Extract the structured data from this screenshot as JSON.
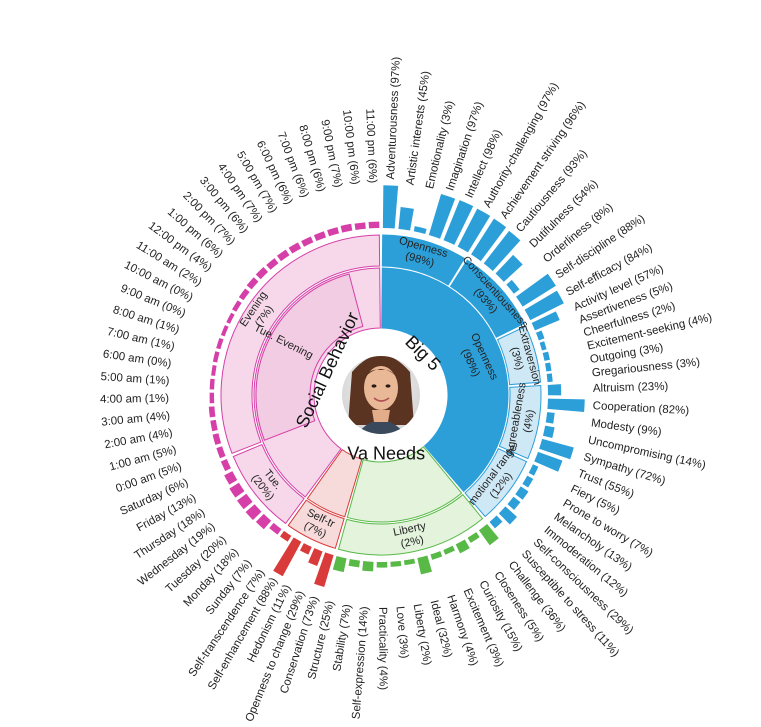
{
  "chart_data": {
    "type": "sunburst",
    "center_avatar": "profile-photo",
    "colors": {
      "big5": "#2c9fd9",
      "big5_light": "#cfe8f6",
      "needs": "#58b947",
      "needs_light": "#e3f3dc",
      "values": "#d93a3a",
      "values_light": "#f7dada",
      "social": "#d63fa8",
      "social_light": "#f6d8ea"
    },
    "sectors": [
      {
        "name": "Big 5",
        "percent_label": "Openness (98%)",
        "start": 0,
        "end": 140,
        "color_key": "big5",
        "groups": [
          {
            "name": "Openness",
            "pct_label": "(98%)",
            "start": 0,
            "end": 32,
            "shade": "strong",
            "traits": [
              {
                "label": "Adventurousness (97%)",
                "value": 0.97
              },
              {
                "label": "Artistic interests (45%)",
                "value": 0.45
              },
              {
                "label": "Emotionality (3%)",
                "value": 0.03
              },
              {
                "label": "Imagination (97%)",
                "value": 0.97
              },
              {
                "label": "Intellect (98%)",
                "value": 0.98
              },
              {
                "label": "Authority-challenging (97%)",
                "value": 0.97
              }
            ]
          },
          {
            "name": "Conscientiousness",
            "short": "Conscientiousness",
            "pct_label": "(93%)",
            "start": 32,
            "end": 64,
            "shade": "strong",
            "traits": [
              {
                "label": "Achievement striving (96%)",
                "value": 0.96
              },
              {
                "label": "Cautiousness (93%)",
                "value": 0.93
              },
              {
                "label": "Dutifulness (54%)",
                "value": 0.54
              },
              {
                "label": "Orderliness (8%)",
                "value": 0.08
              },
              {
                "label": "Self-discipline (88%)",
                "value": 0.88
              },
              {
                "label": "Self-efficacy (84%)",
                "value": 0.84
              }
            ]
          },
          {
            "name": "Extraversion",
            "pct_label": "(3%)",
            "start": 64,
            "end": 86,
            "shade": "light",
            "traits": [
              {
                "label": "Activity level (57%)",
                "value": 0.57
              },
              {
                "label": "Assertiveness (5%)",
                "value": 0.05
              },
              {
                "label": "Cheerfulness (2%)",
                "value": 0.02
              },
              {
                "label": "Excitement-seeking (4%)",
                "value": 0.04
              },
              {
                "label": "Outgoing (3%)",
                "value": 0.03
              },
              {
                "label": "Gregariousness (3%)",
                "value": 0.03
              }
            ]
          },
          {
            "name": "Agreeableness",
            "pct_label": "(4%)",
            "start": 86,
            "end": 114,
            "shade": "light",
            "traits": [
              {
                "label": "Altruism (23%)",
                "value": 0.23
              },
              {
                "label": "Cooperation (82%)",
                "value": 0.82
              },
              {
                "label": "Modesty (9%)",
                "value": 0.09
              },
              {
                "label": "Uncompromising (14%)",
                "value": 0.14
              },
              {
                "label": "Sympathy (72%)",
                "value": 0.72
              },
              {
                "label": "Trust (55%)",
                "value": 0.55
              }
            ]
          },
          {
            "name": "Emotional range",
            "pct_label": "(12%)",
            "start": 114,
            "end": 140,
            "shade": "light",
            "traits": [
              {
                "label": "Fiery (5%)",
                "value": 0.05
              },
              {
                "label": "Prone to worry (7%)",
                "value": 0.07
              },
              {
                "label": "Melancholy (13%)",
                "value": 0.13
              },
              {
                "label": "Immoderation (12%)",
                "value": 0.12
              },
              {
                "label": "Self-consciousness (29%)",
                "value": 0.29
              },
              {
                "label": "Susceptible to stress (11%)",
                "value": 0.11
              }
            ]
          }
        ]
      },
      {
        "name": "Needs",
        "start": 140,
        "end": 196,
        "color_key": "needs",
        "groups": [
          {
            "name": "Liberty",
            "pct_label": "(2%)",
            "start": 140,
            "end": 196,
            "shade": "light",
            "traits": [
              {
                "label": "Challenge (36%)",
                "value": 0.36
              },
              {
                "label": "Closeness (5%)",
                "value": 0.05
              },
              {
                "label": "Curiosity (15%)",
                "value": 0.15
              },
              {
                "label": "Excitement (3%)",
                "value": 0.03
              },
              {
                "label": "Harmony (4%)",
                "value": 0.04
              },
              {
                "label": "Ideal (32%)",
                "value": 0.32
              },
              {
                "label": "Liberty (2%)",
                "value": 0.02
              },
              {
                "label": "Love (3%)",
                "value": 0.03
              },
              {
                "label": "Practicality (4%)",
                "value": 0.04
              },
              {
                "label": "Self-expression (14%)",
                "value": 0.14
              },
              {
                "label": "Stability (7%)",
                "value": 0.07
              },
              {
                "label": "Structure (25%)",
                "value": 0.25
              }
            ]
          }
        ]
      },
      {
        "name": "Values",
        "start": 196,
        "end": 216,
        "color_key": "values",
        "groups": [
          {
            "name": "Self-tr",
            "pct_label": "(7%)",
            "start": 196,
            "end": 216,
            "shade": "light",
            "traits": [
              {
                "label": "Conservation (73%)",
                "value": 0.73
              },
              {
                "label": "Openness to change (29%)",
                "value": 0.29
              },
              {
                "label": "Hedonism (11%)",
                "value": 0.11
              },
              {
                "label": "Self-enhancement (88%)",
                "value": 0.88
              },
              {
                "label": "Self-transcendence (7%)",
                "value": 0.07
              }
            ]
          }
        ]
      },
      {
        "name": "Social Behavior",
        "start": 216,
        "end": 360,
        "color_key": "social",
        "groups": [
          {
            "name": "Tue.",
            "pct_label": "(20%)",
            "start": 216,
            "end": 248,
            "shade": "light",
            "traits": [
              {
                "label": "Sunday (7%)",
                "value": 0.07
              },
              {
                "label": "Monday (18%)",
                "value": 0.18
              },
              {
                "label": "Tuesday (20%)",
                "value": 0.2
              },
              {
                "label": "Wednesday (19%)",
                "value": 0.19
              },
              {
                "label": "Thursday (18%)",
                "value": 0.18
              },
              {
                "label": "Friday (13%)",
                "value": 0.13
              },
              {
                "label": "Saturday (6%)",
                "value": 0.06
              }
            ]
          },
          {
            "name": "Evening",
            "pct_label": "(7%)",
            "start": 248,
            "end": 360,
            "shade": "light",
            "traits": [
              {
                "label": "0:00 am (5%)",
                "value": 0.05
              },
              {
                "label": "1:00 am (5%)",
                "value": 0.05
              },
              {
                "label": "2:00 am (4%)",
                "value": 0.04
              },
              {
                "label": "3:00 am (4%)",
                "value": 0.04
              },
              {
                "label": "4:00 am (1%)",
                "value": 0.01
              },
              {
                "label": "5:00 am (1%)",
                "value": 0.01
              },
              {
                "label": "6:00 am (0%)",
                "value": 0.0
              },
              {
                "label": "7:00 am (1%)",
                "value": 0.01
              },
              {
                "label": "8:00 am (1%)",
                "value": 0.01
              },
              {
                "label": "9:00 am (0%)",
                "value": 0.0
              },
              {
                "label": "10:00 am (0%)",
                "value": 0.0
              },
              {
                "label": "11:00 am (2%)",
                "value": 0.02
              },
              {
                "label": "12:00 pm (4%)",
                "value": 0.04
              },
              {
                "label": "1:00 pm (6%)",
                "value": 0.06
              },
              {
                "label": "2:00 pm (7%)",
                "value": 0.07
              },
              {
                "label": "3:00 pm (6%)",
                "value": 0.06
              },
              {
                "label": "4:00 pm (7%)",
                "value": 0.07
              },
              {
                "label": "5:00 pm (7%)",
                "value": 0.07
              },
              {
                "label": "6:00 pm (6%)",
                "value": 0.06
              },
              {
                "label": "7:00 pm (6%)",
                "value": 0.06
              },
              {
                "label": "8:00 pm (6%)",
                "value": 0.06
              },
              {
                "label": "9:00 pm (7%)",
                "value": 0.07
              },
              {
                "label": "10:00 pm (6%)",
                "value": 0.06
              },
              {
                "label": "11:00 pm (6%)",
                "value": 0.06
              }
            ]
          }
        ]
      }
    ],
    "sub_segments": [
      {
        "label": "Tue. Evening",
        "start": 248,
        "end": 346,
        "sector": "Social Behavior"
      }
    ],
    "inner_labels": [
      {
        "text": "Big 5",
        "sector": "Big 5"
      },
      {
        "text": "Va Needs",
        "sector": "Needs"
      },
      {
        "text": "Social Behavior",
        "sector": "Social Behavior"
      }
    ]
  }
}
